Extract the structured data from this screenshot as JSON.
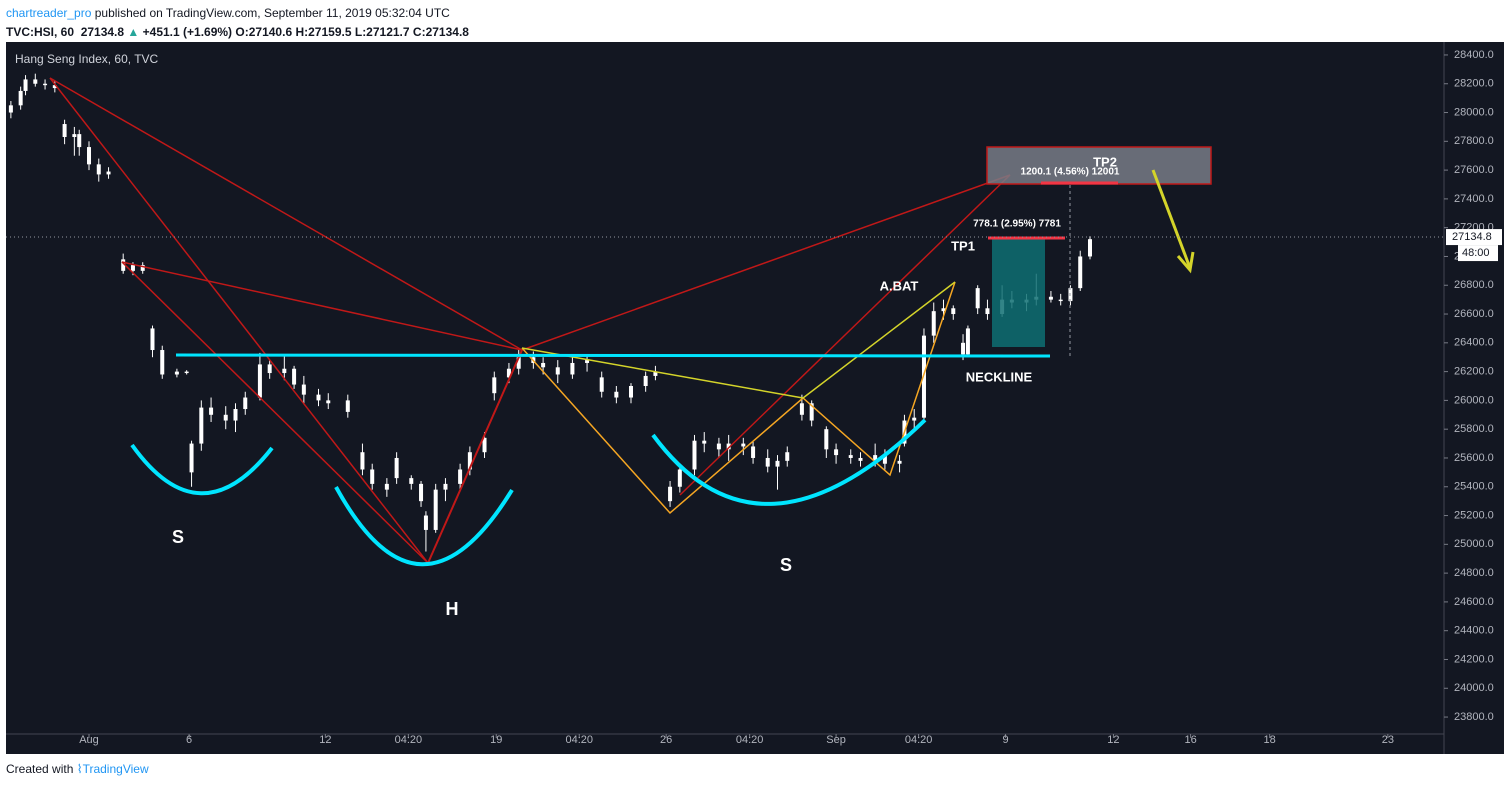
{
  "header": {
    "publisher": "chartreader_pro",
    "published": "published on TradingView.com, September 11, 2019 05:32:04 UTC",
    "symbol": "TVC:HSI, 60",
    "price": "27134.8",
    "change": "+451.1 (+1.69%)",
    "open": "O:27140.6",
    "high": "H:27159.5",
    "low": "L:27121.7",
    "close": "C:27134.8"
  },
  "footer": {
    "text": "Created with",
    "brand": "TradingView"
  },
  "chart_data": {
    "type": "candlestick",
    "title": "Hang Seng Index, 60, TVC",
    "up_color": "#ffffff",
    "down_color": "#ffffff",
    "background": "#131722",
    "last_price": 27134.8,
    "countdown": "48:00",
    "x": [
      1,
      3,
      4,
      6,
      8,
      10,
      12,
      14,
      15,
      17,
      19,
      21,
      24,
      26,
      28,
      30,
      32,
      35,
      37,
      38,
      40,
      42,
      45,
      47,
      49,
      52,
      54,
      57,
      59,
      61,
      64,
      66,
      70,
      73,
      75,
      78,
      80,
      83,
      85,
      86,
      88,
      90,
      93,
      95,
      98,
      100,
      103,
      105,
      108,
      110,
      113,
      116,
      119,
      122,
      125,
      128,
      131,
      133,
      136,
      138,
      141,
      143,
      146,
      148,
      151,
      153,
      156,
      158,
      160,
      163,
      165,
      168,
      170,
      173,
      175,
      178,
      180,
      183,
      184,
      186,
      188,
      190,
      192,
      194,
      196,
      197,
      199,
      201,
      204,
      206,
      209,
      211,
      214,
      216,
      218,
      220,
      222
    ],
    "open": [
      28000,
      28050,
      28150,
      28230,
      28200,
      28190,
      27920,
      27830,
      27850,
      27760,
      27640,
      27570,
      26980,
      26900,
      26940,
      26500,
      26350,
      26180,
      26200,
      25500,
      25700,
      25950,
      25900,
      25860,
      25940,
      26020,
      26250,
      26190,
      26220,
      26110,
      26040,
      26000,
      26000,
      25640,
      25520,
      25420,
      25600,
      25460,
      25420,
      25200,
      25100,
      25380,
      25420,
      25520,
      25640,
      26050,
      26160,
      26220,
      26300,
      26260,
      26230,
      26180,
      26260,
      26160,
      26060,
      26020,
      26100,
      26170,
      25300,
      25400,
      25520,
      25720,
      25700,
      25660,
      25700,
      25680,
      25600,
      25540,
      25580,
      25900,
      25980,
      25800,
      25660,
      25620,
      25600,
      25580,
      25620,
      25560,
      25700,
      25860,
      25880,
      26450,
      26620,
      26640,
      26400,
      26320,
      26780,
      26640,
      26600,
      26700,
      26680,
      26700,
      26720,
      26700,
      26690,
      26780,
      27000
    ],
    "high": [
      28080,
      28180,
      28260,
      28270,
      28230,
      28220,
      27950,
      27900,
      27880,
      27800,
      27680,
      27620,
      27020,
      26960,
      26960,
      26520,
      26380,
      26220,
      26210,
      25720,
      26000,
      26020,
      25960,
      25980,
      26060,
      26330,
      26280,
      26310,
      26240,
      26170,
      26080,
      26050,
      26040,
      25700,
      25560,
      25460,
      25640,
      25480,
      25440,
      25230,
      25420,
      25460,
      25560,
      25680,
      25780,
      26200,
      26260,
      26350,
      26340,
      26300,
      26280,
      26300,
      26320,
      26200,
      26100,
      26120,
      26200,
      26240,
      25440,
      25560,
      25760,
      25780,
      25740,
      25760,
      25740,
      25720,
      25660,
      25620,
      25680,
      26040,
      26000,
      25820,
      25700,
      25660,
      25640,
      25700,
      25660,
      25620,
      25900,
      25940,
      26500,
      26680,
      26700,
      26660,
      26460,
      26520,
      26800,
      26700,
      26800,
      26760,
      26740,
      26880,
      26760,
      26740,
      26800,
      27040,
      27140
    ],
    "low": [
      27960,
      28020,
      28120,
      28180,
      28160,
      28140,
      27780,
      27700,
      27700,
      27600,
      27520,
      27540,
      26880,
      26870,
      26880,
      26300,
      26150,
      26160,
      26180,
      25400,
      25650,
      25850,
      25800,
      25780,
      25900,
      26000,
      26150,
      26140,
      26080,
      25980,
      25960,
      25940,
      25880,
      25480,
      25380,
      25330,
      25420,
      25380,
      25260,
      24950,
      25080,
      25300,
      25380,
      25480,
      25600,
      26000,
      26120,
      26180,
      26220,
      26180,
      26120,
      26150,
      26200,
      26020,
      25980,
      25980,
      26060,
      26140,
      25260,
      25360,
      25480,
      25640,
      25600,
      25580,
      25620,
      25560,
      25500,
      25380,
      25540,
      25860,
      25820,
      25600,
      25560,
      25560,
      25540,
      25540,
      25520,
      25500,
      25680,
      25800,
      25860,
      26400,
      26560,
      26560,
      26280,
      26300,
      26600,
      26560,
      26580,
      26640,
      26620,
      26660,
      26680,
      26660,
      26660,
      26760,
      26980
    ],
    "close": [
      28050,
      28150,
      28230,
      28200,
      28190,
      28170,
      27830,
      27850,
      27760,
      27640,
      27570,
      27590,
      26900,
      26940,
      26900,
      26350,
      26180,
      26200,
      26190,
      25700,
      25950,
      25900,
      25860,
      25940,
      26020,
      26250,
      26190,
      26220,
      26110,
      26040,
      26000,
      25980,
      25920,
      25520,
      25420,
      25380,
      25460,
      25420,
      25300,
      25100,
      25380,
      25420,
      25520,
      25640,
      25740,
      26160,
      26220,
      26300,
      26260,
      26230,
      26180,
      26260,
      26280,
      26060,
      26020,
      26100,
      26170,
      26200,
      25400,
      25520,
      25720,
      25700,
      25660,
      25700,
      25680,
      25600,
      25540,
      25580,
      25640,
      25980,
      25860,
      25660,
      25620,
      25600,
      25580,
      25620,
      25560,
      25580,
      25860,
      25880,
      26450,
      26620,
      26640,
      26600,
      26320,
      26500,
      26640,
      26600,
      26700,
      26680,
      26700,
      26720,
      26700,
      26690,
      26780,
      27000,
      27120
    ],
    "xlim": [
      0,
      294.5
    ],
    "xticks": [
      {
        "value": 17,
        "label": "Aug"
      },
      {
        "value": 37.5,
        "label": "6"
      },
      {
        "value": 65.4,
        "label": "12"
      },
      {
        "value": 82.4,
        "label": "04:20"
      },
      {
        "value": 100.4,
        "label": "19"
      },
      {
        "value": 117.4,
        "label": "04:20"
      },
      {
        "value": 135.2,
        "label": "26"
      },
      {
        "value": 152.3,
        "label": "04:20"
      },
      {
        "value": 170,
        "label": "Sep"
      },
      {
        "value": 186.9,
        "label": "04:20"
      },
      {
        "value": 204.7,
        "label": "9"
      },
      {
        "value": 226.8,
        "label": "12"
      },
      {
        "value": 242.6,
        "label": "16"
      },
      {
        "value": 258.8,
        "label": "18"
      },
      {
        "value": 283,
        "label": "23"
      }
    ],
    "ylim": [
      23585,
      28490
    ],
    "yticks": [
      {
        "value": 23800,
        "label": "23800.0"
      },
      {
        "value": 24000,
        "label": "24000.0"
      },
      {
        "value": 24200,
        "label": "24200.0"
      },
      {
        "value": 24400,
        "label": "24400.0"
      },
      {
        "value": 24600,
        "label": "24600.0"
      },
      {
        "value": 24800,
        "label": "24800.0"
      },
      {
        "value": 25000,
        "label": "25000.0"
      },
      {
        "value": 25200,
        "label": "25200.0"
      },
      {
        "value": 25400,
        "label": "25400.0"
      },
      {
        "value": 25600,
        "label": "25600.0"
      },
      {
        "value": 25800,
        "label": "25800.0"
      },
      {
        "value": 26000,
        "label": "26000.0"
      },
      {
        "value": 26200,
        "label": "26200.0"
      },
      {
        "value": 26400,
        "label": "26400.0"
      },
      {
        "value": 26600,
        "label": "26600.0"
      },
      {
        "value": 26800,
        "label": "26800.0"
      },
      {
        "value": 27000,
        "label": "27000.0"
      },
      {
        "value": 27200,
        "label": "27200.0"
      },
      {
        "value": 27400,
        "label": "27400.0"
      },
      {
        "value": 27600,
        "label": "27600.0"
      },
      {
        "value": 27800,
        "label": "27800.0"
      },
      {
        "value": 28000,
        "label": "28000.0"
      },
      {
        "value": 28200,
        "label": "28200.0"
      },
      {
        "value": 28400,
        "label": "28400.0"
      }
    ],
    "annotations": {
      "s_left": "S",
      "h": "H",
      "s_right": "S",
      "abat": "A.BAT",
      "tp1": "TP1",
      "tp2": "TP2",
      "neckline": "NECKLINE",
      "tp1_measure": "778.1 (2.95%) 7781",
      "tp2_measure": "1200.1 (4.56%) 12001"
    }
  }
}
